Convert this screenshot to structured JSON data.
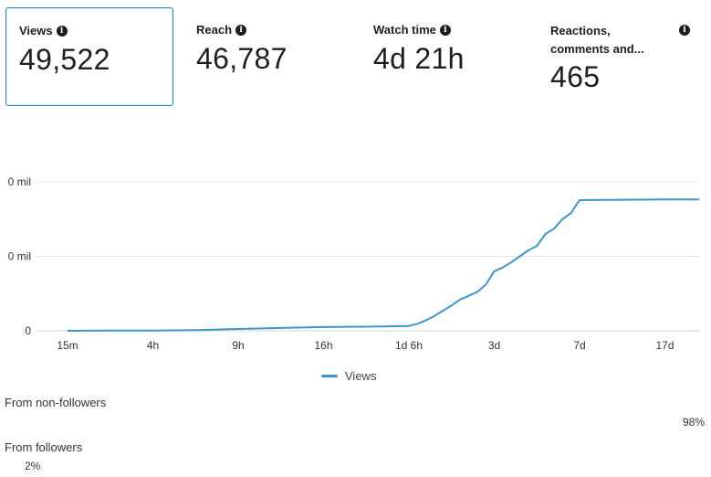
{
  "metrics": {
    "views": {
      "label": "Views",
      "value": "49,522"
    },
    "reach": {
      "label": "Reach",
      "value": "46,787"
    },
    "watch_time": {
      "label": "Watch time",
      "value": "4d 21h"
    },
    "reactions": {
      "label_line1": "Reactions,",
      "label_line2": "comments and...",
      "value": "465"
    }
  },
  "chart_data": {
    "type": "line",
    "title": "",
    "xlabel": "",
    "ylabel": "",
    "categories": [
      "15m",
      "4h",
      "9h",
      "16h",
      "1d 6h",
      "3d",
      "7d",
      "17d"
    ],
    "y_tick_labels": [
      "0",
      "0 mil",
      "0 mil"
    ],
    "grid": true,
    "legend_position": "bottom-center",
    "series": [
      {
        "name": "Views",
        "color": "#3b95cf",
        "x": [
          0,
          0.5,
          1,
          1.5,
          2,
          2.5,
          3,
          3.5,
          4,
          4.1,
          4.2,
          4.3,
          4.4,
          4.5,
          4.6,
          4.7,
          4.8,
          4.9,
          5.0,
          5.1,
          5.2,
          5.3,
          5.4,
          5.5,
          5.6,
          5.7,
          5.8,
          5.9,
          6.0,
          6.5,
          7.0,
          7.4
        ],
        "values": [
          0,
          200,
          400,
          900,
          2500,
          3800,
          5000,
          5500,
          6500,
          9500,
          14000,
          20000,
          27000,
          34000,
          42000,
          47000,
          52000,
          62000,
          80000,
          85000,
          92000,
          100000,
          108000,
          114000,
          130000,
          137000,
          150000,
          158000,
          175500,
          176000,
          176300,
          176300
        ]
      }
    ],
    "ylim": [
      0,
      200000
    ]
  },
  "audience": {
    "non_followers_label": "From non-followers",
    "non_followers_pct": "98%",
    "followers_label": "From followers",
    "followers_pct": "2%"
  }
}
